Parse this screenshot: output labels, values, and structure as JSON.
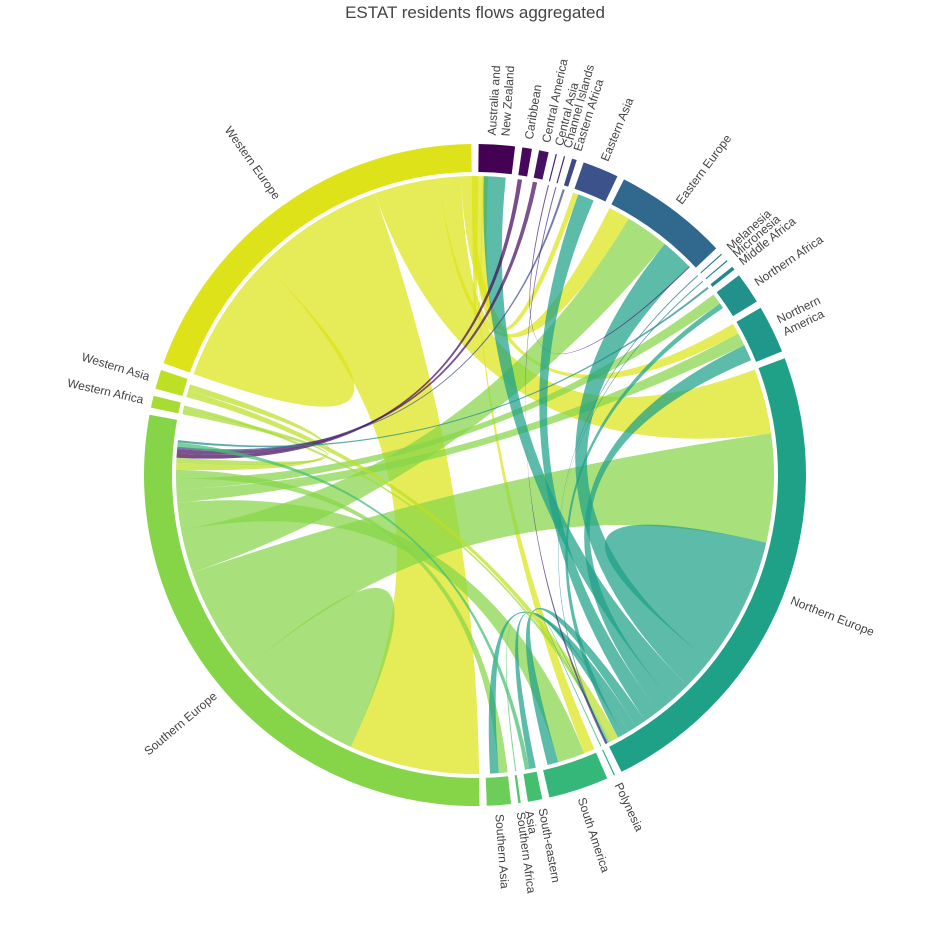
{
  "chart_data": {
    "type": "chord",
    "title": "ESTAT residents flows aggregated",
    "regions": [
      {
        "name": "Australia and New Zealand",
        "label_lines": [
          "Australia and",
          "New Zealand"
        ],
        "size": 30,
        "color": "#440154"
      },
      {
        "name": "Caribbean",
        "label_lines": [
          "Caribbean"
        ],
        "size": 8,
        "color": "#46085c"
      },
      {
        "name": "Central America",
        "label_lines": [
          "Central America"
        ],
        "size": 8,
        "color": "#471063"
      },
      {
        "name": "Central Asia",
        "label_lines": [
          "Central Asia"
        ],
        "size": 1,
        "color": "#481a6c"
      },
      {
        "name": "Channel Islands",
        "label_lines": [
          "Channel Islands"
        ],
        "size": 1,
        "color": "#472b7a"
      },
      {
        "name": "Eastern Africa",
        "label_lines": [
          "Eastern Africa"
        ],
        "size": 4,
        "color": "#3e4989"
      },
      {
        "name": "Eastern Asia",
        "label_lines": [
          "Eastern Asia"
        ],
        "size": 30,
        "color": "#3b528b"
      },
      {
        "name": "Eastern Europe",
        "label_lines": [
          "Eastern Europe"
        ],
        "size": 95,
        "color": "#31688e"
      },
      {
        "name": "Melanesia",
        "label_lines": [
          "Melanesia"
        ],
        "size": 1,
        "color": "#2a788e"
      },
      {
        "name": "Micronesia",
        "label_lines": [
          "Micronesia"
        ],
        "size": 1,
        "color": "#26828e"
      },
      {
        "name": "Middle Africa",
        "label_lines": [
          "Middle Africa"
        ],
        "size": 3,
        "color": "#23898e"
      },
      {
        "name": "Northern Africa",
        "label_lines": [
          "Northern Africa"
        ],
        "size": 26,
        "color": "#21918c"
      },
      {
        "name": "Northern America",
        "label_lines": [
          "Northern",
          "America"
        ],
        "size": 40,
        "color": "#1f988b"
      },
      {
        "name": "Northern Europe",
        "label_lines": [
          "Northern Europe"
        ],
        "size": 400,
        "color": "#1fa188"
      },
      {
        "name": "Polynesia",
        "label_lines": [
          "Polynesia"
        ],
        "size": 1,
        "color": "#2ab07f"
      },
      {
        "name": "South America",
        "label_lines": [
          "South America"
        ],
        "size": 50,
        "color": "#35b779"
      },
      {
        "name": "South-eastern Asia",
        "label_lines": [
          "South-eastern",
          "Asia"
        ],
        "size": 12,
        "color": "#44bf70"
      },
      {
        "name": "Southern Africa",
        "label_lines": [
          "Southern Africa"
        ],
        "size": 2,
        "color": "#54c568"
      },
      {
        "name": "Southern Asia",
        "label_lines": [
          "Southern Asia"
        ],
        "size": 20,
        "color": "#6ccd5a"
      },
      {
        "name": "Southern Europe",
        "label_lines": [
          "Southern Europe"
        ],
        "size": 480,
        "color": "#86d549"
      },
      {
        "name": "Western Africa",
        "label_lines": [
          "Western Africa"
        ],
        "size": 10,
        "color": "#a8db34"
      },
      {
        "name": "Western Asia",
        "label_lines": [
          "Western Asia"
        ],
        "size": 16,
        "color": "#bddf26"
      },
      {
        "name": "Western Europe",
        "label_lines": [
          "Western Europe"
        ],
        "size": 330,
        "color": "#dde318"
      }
    ],
    "flows": [
      {
        "source": "Western Europe",
        "target": "Western Europe",
        "value": 60
      },
      {
        "source": "Western Europe",
        "target": "Southern Europe",
        "value": 120
      },
      {
        "source": "Western Europe",
        "target": "Northern Europe",
        "value": 60
      },
      {
        "source": "Western Europe",
        "target": "Eastern Europe",
        "value": 20
      },
      {
        "source": "Western Europe",
        "target": "Northern America",
        "value": 10
      },
      {
        "source": "Western Europe",
        "target": "South America",
        "value": 10
      },
      {
        "source": "Western Europe",
        "target": "Australia and New Zealand",
        "value": 5
      },
      {
        "source": "Western Europe",
        "target": "Eastern Asia",
        "value": 5
      },
      {
        "source": "Southern Europe",
        "target": "Southern Europe",
        "value": 60
      },
      {
        "source": "Southern Europe",
        "target": "Northern Europe",
        "value": 100
      },
      {
        "source": "Southern Europe",
        "target": "Eastern Europe",
        "value": 40
      },
      {
        "source": "Southern Europe",
        "target": "South America",
        "value": 25
      },
      {
        "source": "Southern Europe",
        "target": "Northern America",
        "value": 12
      },
      {
        "source": "Southern Europe",
        "target": "Northern Africa",
        "value": 10
      },
      {
        "source": "Southern Europe",
        "target": "Southern Asia",
        "value": 8
      },
      {
        "source": "Northern Europe",
        "target": "Northern Europe",
        "value": 60
      },
      {
        "source": "Northern Europe",
        "target": "Eastern Europe",
        "value": 30
      },
      {
        "source": "Northern Europe",
        "target": "Australia and New Zealand",
        "value": 20
      },
      {
        "source": "Northern Europe",
        "target": "Northern America",
        "value": 15
      },
      {
        "source": "Northern Europe",
        "target": "Eastern Asia",
        "value": 15
      },
      {
        "source": "Northern Europe",
        "target": "South America",
        "value": 10
      },
      {
        "source": "Northern Europe",
        "target": "Southern Asia",
        "value": 8
      },
      {
        "source": "Northern Europe",
        "target": "South-eastern Asia",
        "value": 6
      },
      {
        "source": "Northern Europe",
        "target": "Northern Africa",
        "value": 5
      },
      {
        "source": "Western Asia",
        "target": "Northern Europe",
        "value": 6
      },
      {
        "source": "Western Asia",
        "target": "Southern Europe",
        "value": 6
      },
      {
        "source": "Western Africa",
        "target": "Southern Europe",
        "value": 5
      },
      {
        "source": "Western Africa",
        "target": "Northern Europe",
        "value": 3
      },
      {
        "source": "Caribbean",
        "target": "Southern Europe",
        "value": 4
      },
      {
        "source": "Central America",
        "target": "Southern Europe",
        "value": 4
      },
      {
        "source": "Eastern Africa",
        "target": "Southern Europe",
        "value": 2
      },
      {
        "source": "South-eastern Asia",
        "target": "Southern Europe",
        "value": 4
      },
      {
        "source": "Southern Africa",
        "target": "Northern Europe",
        "value": 1
      },
      {
        "source": "Polynesia",
        "target": "Northern Europe",
        "value": 1
      },
      {
        "source": "Melanesia",
        "target": "Northern Europe",
        "value": 1
      },
      {
        "source": "Micronesia",
        "target": "Northern Europe",
        "value": 1
      },
      {
        "source": "Middle Africa",
        "target": "Southern Europe",
        "value": 2
      },
      {
        "source": "Central Asia",
        "target": "Eastern Europe",
        "value": 1
      },
      {
        "source": "Channel Islands",
        "target": "Northern Europe",
        "value": 1
      }
    ]
  }
}
